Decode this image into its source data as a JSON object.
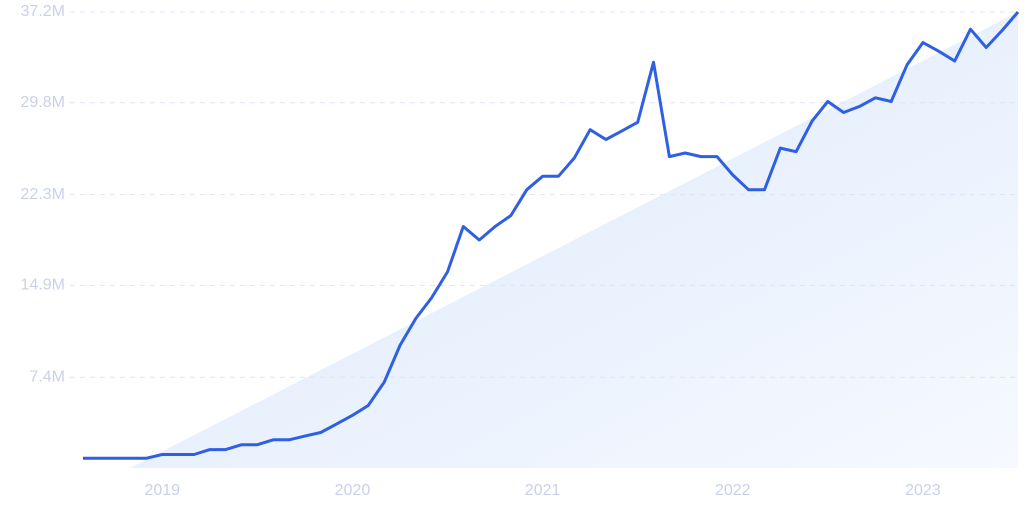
{
  "chart_data": {
    "type": "line",
    "x": [
      2018.583,
      2018.667,
      2018.75,
      2018.833,
      2018.917,
      2019,
      2019.083,
      2019.167,
      2019.25,
      2019.333,
      2019.417,
      2019.5,
      2019.583,
      2019.667,
      2019.75,
      2019.833,
      2019.917,
      2020,
      2020.083,
      2020.167,
      2020.25,
      2020.333,
      2020.417,
      2020.5,
      2020.583,
      2020.667,
      2020.75,
      2020.833,
      2020.917,
      2021,
      2021.083,
      2021.167,
      2021.25,
      2021.333,
      2021.417,
      2021.5,
      2021.583,
      2021.667,
      2021.75,
      2021.833,
      2021.917,
      2022,
      2022.083,
      2022.167,
      2022.25,
      2022.333,
      2022.417,
      2022.5,
      2022.583,
      2022.667,
      2022.75,
      2022.833,
      2022.917,
      2023,
      2023.083,
      2023.167,
      2023.25,
      2023.333,
      2023.417,
      2023.5
    ],
    "series": [
      {
        "color": "#2f5fe3",
        "values": [
          0.8,
          0.8,
          0.8,
          0.8,
          0.8,
          1.1,
          1.1,
          1.1,
          1.5,
          1.5,
          1.9,
          1.9,
          2.3,
          2.3,
          2.6,
          2.9,
          3.6,
          4.3,
          5.1,
          7.0,
          10.0,
          12.2,
          13.9,
          16.0,
          19.7,
          18.6,
          19.7,
          20.6,
          22.7,
          23.8,
          23.8,
          25.3,
          27.6,
          26.8,
          27.5,
          28.2,
          33.1,
          25.4,
          25.7,
          25.4,
          25.4,
          23.9,
          22.7,
          22.7,
          26.1,
          25.8,
          28.3,
          29.9,
          29.0,
          29.5,
          30.2,
          29.9,
          32.9,
          34.7,
          34.0,
          33.2,
          35.8,
          34.3,
          35.7,
          37.2
        ]
      }
    ],
    "xlim": [
      2018.583,
      2023.5
    ],
    "xticks": [
      2019,
      2020,
      2021,
      2022,
      2023
    ],
    "ylim": [
      0,
      37.2
    ],
    "yticks": [
      {
        "value": 7.4,
        "label": "7.4M"
      },
      {
        "value": 14.9,
        "label": "14.9M"
      },
      {
        "value": 22.3,
        "label": "22.3M"
      },
      {
        "value": 29.8,
        "label": "29.8M"
      },
      {
        "value": 37.2,
        "label": "37.2M"
      }
    ],
    "grid": true
  }
}
